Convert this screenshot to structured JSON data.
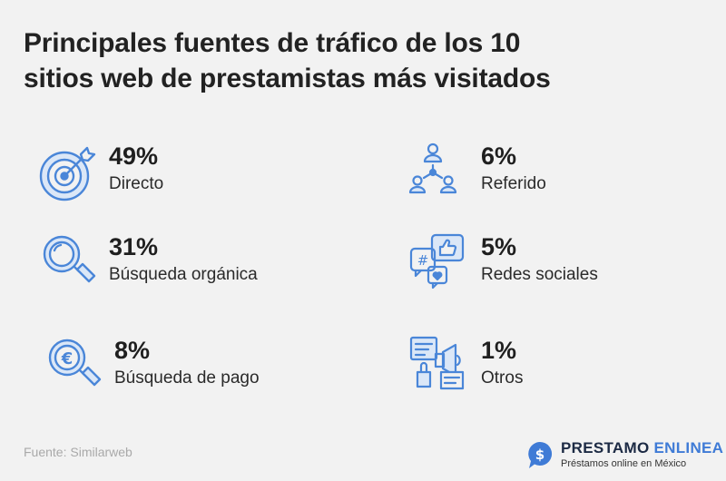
{
  "title": {
    "line1": "Principales fuentes de tráfico de los 10",
    "line2": "sitios web de prestamistas más visitados"
  },
  "stats": [
    {
      "value": "49%",
      "label": "Directo",
      "icon": "target-icon"
    },
    {
      "value": "31%",
      "label": "Búsqueda orgánica",
      "icon": "magnifier-icon"
    },
    {
      "value": "8%",
      "label": "Búsqueda de pago",
      "icon": "euro-magnifier-icon"
    },
    {
      "value": "6%",
      "label": "Referido",
      "icon": "referral-network-icon"
    },
    {
      "value": "5%",
      "label": "Redes sociales",
      "icon": "social-media-icon"
    },
    {
      "value": "1%",
      "label": "Otros",
      "icon": "megaphone-icon"
    }
  ],
  "source": "Fuente: Similarweb",
  "logo": {
    "brand_main": "PRESTAMO",
    "brand_accent": "ENLINEA",
    "tagline": "Préstamos online en México"
  },
  "colors": {
    "icon_blue": "#4a86d8",
    "icon_light": "#dbe7f7",
    "background": "#f2f2f2",
    "brand_navy": "#1c2a44"
  }
}
